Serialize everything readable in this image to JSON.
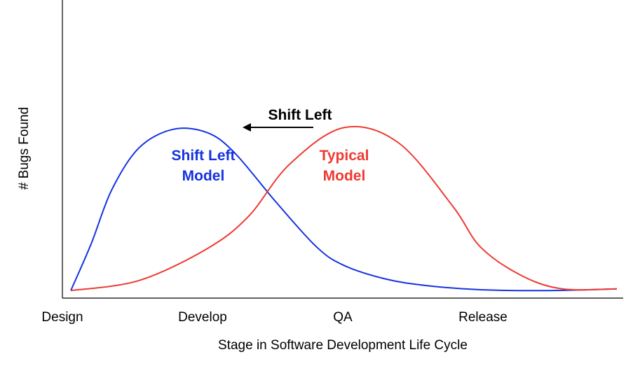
{
  "chart_data": {
    "type": "line",
    "title": "",
    "xlabel": "Stage in Software Development Life Cycle",
    "ylabel": "# Bugs Found",
    "categories": [
      "Design",
      "Develop",
      "QA",
      "Release"
    ],
    "xlim": [
      0,
      4
    ],
    "ylim": [
      0,
      1
    ],
    "grid": false,
    "legend": "none",
    "series": [
      {
        "name": "Shift Left Model",
        "label_lines": [
          "Shift Left",
          "Model"
        ],
        "color": "#1433e0",
        "x": [
          0.0,
          0.15,
          0.3,
          0.5,
          0.75,
          1.0,
          1.2,
          1.5,
          1.8,
          2.0,
          2.3,
          2.6,
          3.0,
          3.5,
          4.0
        ],
        "y": [
          0.02,
          0.3,
          0.62,
          0.87,
          0.98,
          0.96,
          0.84,
          0.55,
          0.28,
          0.17,
          0.09,
          0.05,
          0.025,
          0.02,
          0.03
        ]
      },
      {
        "name": "Typical Model",
        "label_lines": [
          "Typical",
          "Model"
        ],
        "color": "#ee3a32",
        "x": [
          0.0,
          0.5,
          1.0,
          1.3,
          1.6,
          2.0,
          2.4,
          2.8,
          3.0,
          3.3,
          3.6,
          4.0
        ],
        "y": [
          0.02,
          0.08,
          0.27,
          0.46,
          0.77,
          0.99,
          0.9,
          0.52,
          0.28,
          0.11,
          0.03,
          0.03
        ]
      }
    ],
    "annotations": [
      {
        "text": "Shift Left",
        "type": "arrow-left",
        "color": "#000000"
      }
    ]
  }
}
